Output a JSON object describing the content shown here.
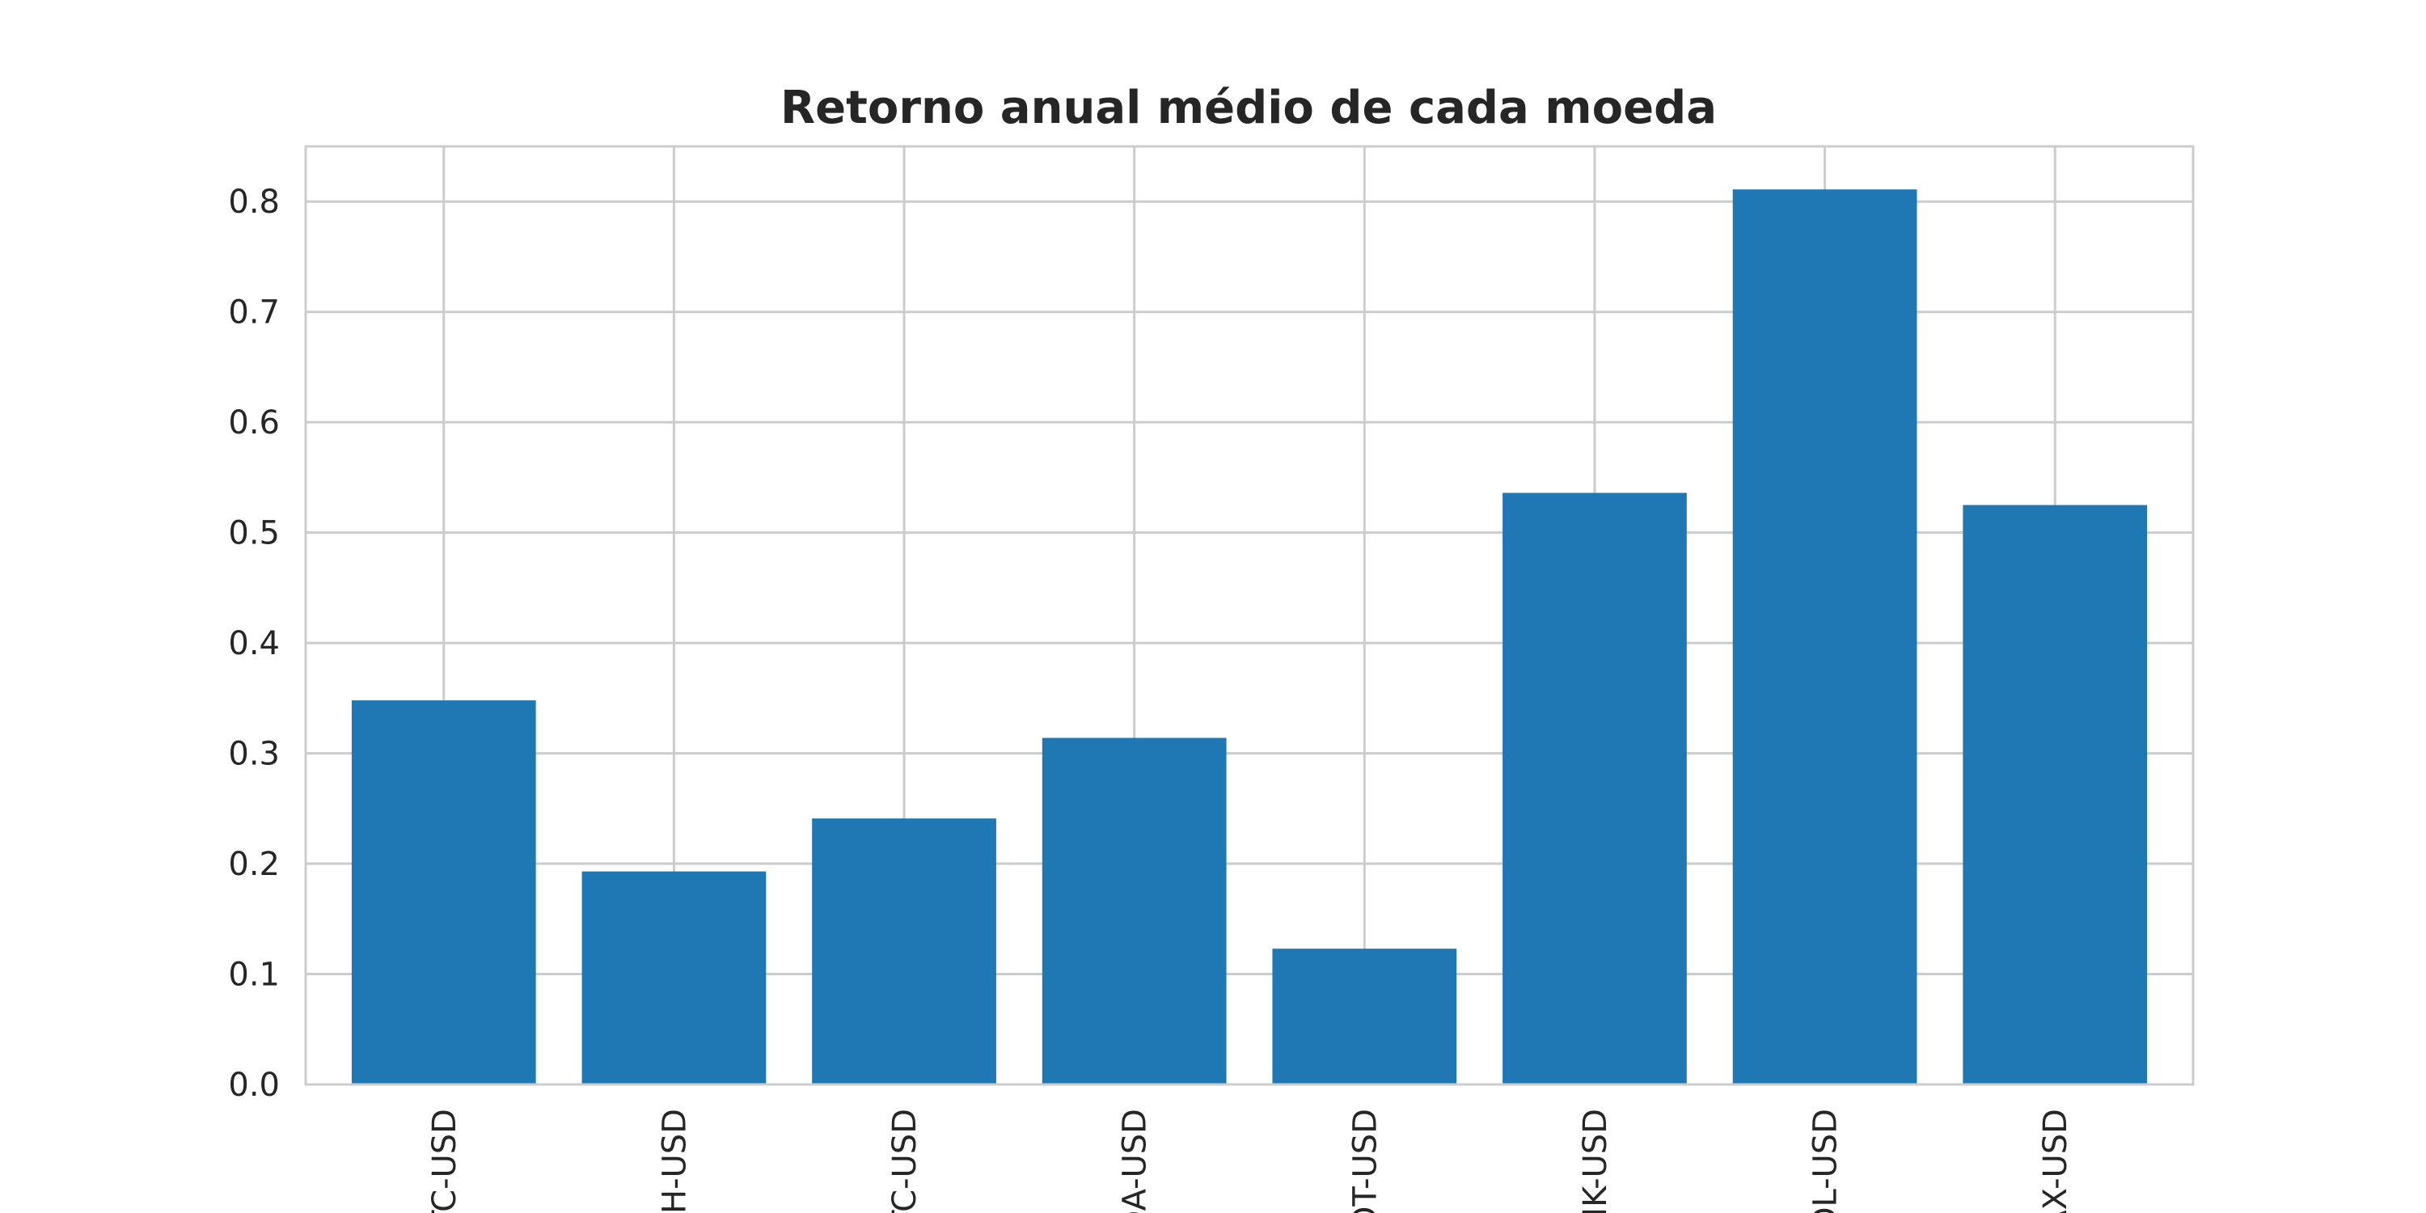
{
  "chart_data": {
    "type": "bar",
    "title": "Retorno anual médio de cada moeda",
    "xlabel": "",
    "ylabel": "",
    "categories": [
      "BTC-USD",
      "ETH-USD",
      "LTC-USD",
      "ADA-USD",
      "DOT-USD",
      "LINK-USD",
      "SOL-USD",
      "AVAX-USD"
    ],
    "values": [
      0.348,
      0.193,
      0.241,
      0.314,
      0.123,
      0.536,
      0.811,
      0.525
    ],
    "yticks": [
      "0.0",
      "0.1",
      "0.2",
      "0.3",
      "0.4",
      "0.5",
      "0.6",
      "0.7",
      "0.8"
    ],
    "ylim": [
      0,
      0.85
    ],
    "grid": true,
    "bar_color": "#1f77b4",
    "x_tick_rotation": "vertical"
  }
}
